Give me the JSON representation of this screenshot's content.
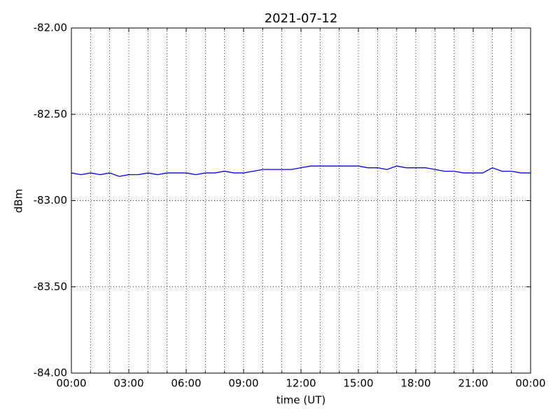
{
  "chart_data": {
    "type": "line",
    "title": "2021-07-12",
    "xlabel": "time (UT)",
    "ylabel": "dBm",
    "x": [
      0,
      0.5,
      1,
      1.5,
      2,
      2.5,
      3,
      3.5,
      4,
      4.5,
      5,
      5.5,
      6,
      6.5,
      7,
      7.5,
      8,
      8.5,
      9,
      9.5,
      10,
      10.5,
      11,
      11.5,
      12,
      12.5,
      13,
      13.5,
      14,
      14.5,
      15,
      15.5,
      16,
      16.5,
      17,
      17.5,
      18,
      18.5,
      19,
      19.5,
      20,
      20.5,
      21,
      21.5,
      22,
      22.5,
      23,
      23.5,
      24
    ],
    "series": [
      {
        "name": "dBm",
        "color": "#0000ff",
        "values": [
          -82.84,
          -82.85,
          -82.84,
          -82.85,
          -82.84,
          -82.86,
          -82.85,
          -82.85,
          -82.84,
          -82.85,
          -82.84,
          -82.84,
          -82.84,
          -82.85,
          -82.84,
          -82.84,
          -82.83,
          -82.84,
          -82.84,
          -82.83,
          -82.82,
          -82.82,
          -82.82,
          -82.82,
          -82.81,
          -82.8,
          -82.8,
          -82.8,
          -82.8,
          -82.8,
          -82.8,
          -82.81,
          -82.81,
          -82.82,
          -82.8,
          -82.81,
          -82.81,
          -82.81,
          -82.82,
          -82.83,
          -82.83,
          -82.84,
          -82.84,
          -82.84,
          -82.81,
          -82.83,
          -82.83,
          -82.84,
          -82.84
        ]
      }
    ],
    "xlim": [
      0,
      24
    ],
    "xticks": [
      {
        "value": 0,
        "label": "00:00"
      },
      {
        "value": 3,
        "label": "03:00"
      },
      {
        "value": 6,
        "label": "06:00"
      },
      {
        "value": 9,
        "label": "09:00"
      },
      {
        "value": 12,
        "label": "12:00"
      },
      {
        "value": 15,
        "label": "15:00"
      },
      {
        "value": 18,
        "label": "18:00"
      },
      {
        "value": 21,
        "label": "21:00"
      },
      {
        "value": 24,
        "label": "00:00"
      }
    ],
    "xminorticks": [
      1,
      2,
      4,
      5,
      7,
      8,
      10,
      11,
      13,
      14,
      16,
      17,
      19,
      20,
      22,
      23
    ],
    "ylim": [
      -84,
      -82
    ],
    "yticks": [
      {
        "value": -82,
        "label": "-82.00"
      },
      {
        "value": -82.5,
        "label": "-82.50"
      },
      {
        "value": -83,
        "label": "-83.00"
      },
      {
        "value": -83.5,
        "label": "-83.50"
      },
      {
        "value": -84,
        "label": "-84.00"
      }
    ],
    "grid": true
  }
}
